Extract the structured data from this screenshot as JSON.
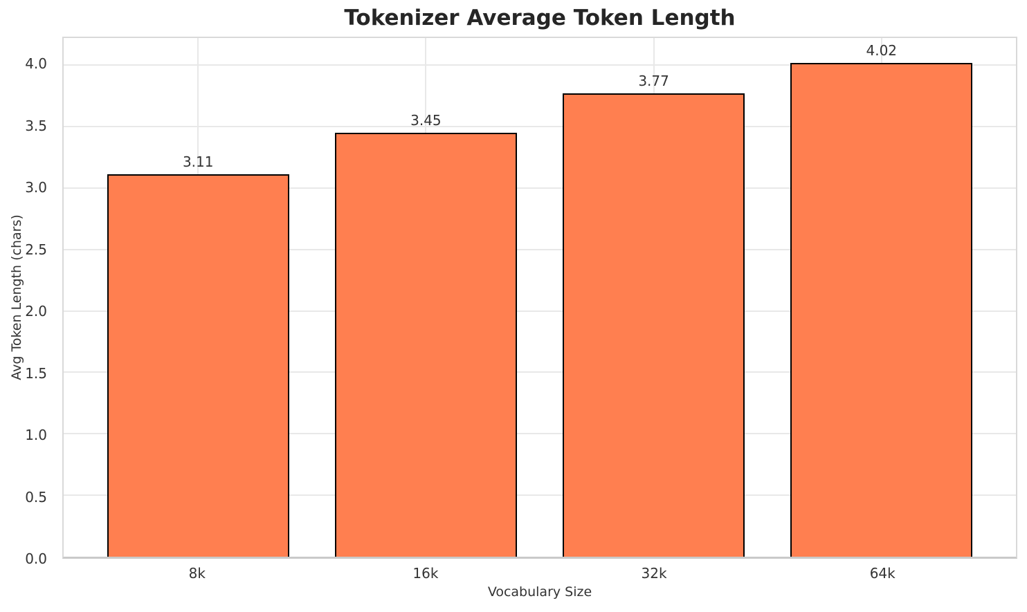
{
  "figure": {
    "title": "Tokenizer Average Token Length"
  },
  "chart_data": {
    "type": "bar",
    "title": "Tokenizer Average Token Length",
    "xlabel": "Vocabulary Size",
    "ylabel": "Avg Token Length (chars)",
    "categories": [
      "8k",
      "16k",
      "32k",
      "64k"
    ],
    "values": [
      3.11,
      3.45,
      3.77,
      4.02
    ],
    "bar_labels": [
      "3.11",
      "3.45",
      "3.77",
      "4.02"
    ],
    "yticks": [
      0.0,
      0.5,
      1.0,
      1.5,
      2.0,
      2.5,
      3.0,
      3.5,
      4.0
    ],
    "ytick_labels": [
      "0.0",
      "0.5",
      "1.0",
      "1.5",
      "2.0",
      "2.5",
      "3.0",
      "3.5",
      "4.0"
    ],
    "ylim": [
      0,
      4.22
    ],
    "xlim_units": [
      -0.59,
      3.59
    ],
    "bar_width_units": 0.8,
    "grid": true,
    "legend_position": "none",
    "colors": {
      "bar_fill": "#FF7F50",
      "bar_edge": "#000000",
      "grid": "#e8e8e8",
      "spine": "#d9d9d9",
      "tick_text": "#333333",
      "title_text": "#262626"
    }
  }
}
